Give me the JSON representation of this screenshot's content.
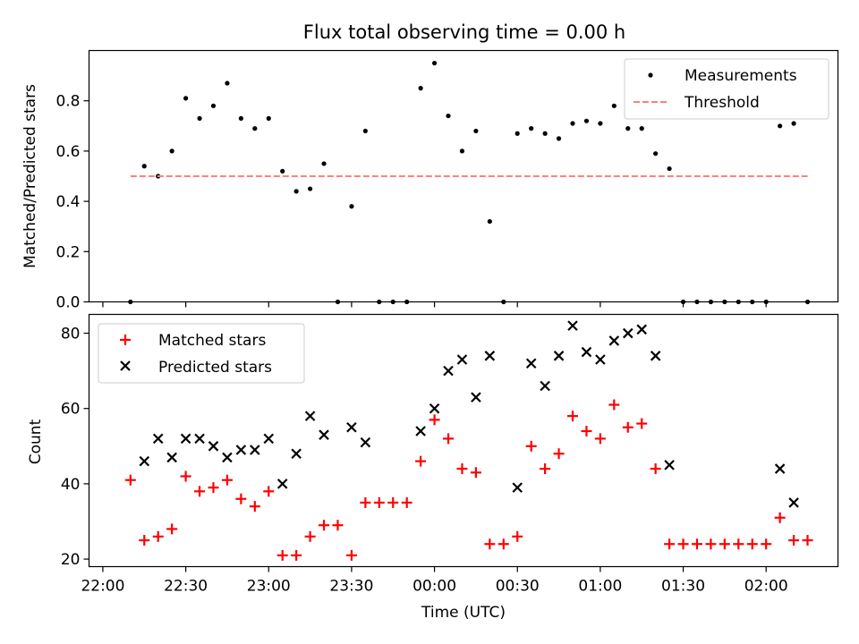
{
  "chart_data": [
    {
      "type": "scatter",
      "title": "Flux total observing time = 0.00 h",
      "xlabel": "",
      "ylabel": "Matched/Predicted stars",
      "ylim": [
        0,
        1.0
      ],
      "yticks": [
        "0.0",
        "0.2",
        "0.4",
        "0.6",
        "0.8"
      ],
      "legend": {
        "placement": "top-right",
        "entries": [
          "Measurements",
          "Threshold"
        ]
      },
      "grid": false,
      "series": [
        {
          "name": "Measurements",
          "marker": "dot",
          "color": "#000000",
          "points": [
            [
              "22:10",
              0.0
            ],
            [
              "22:15",
              0.54
            ],
            [
              "22:20",
              0.5
            ],
            [
              "22:25",
              0.6
            ],
            [
              "22:30",
              0.81
            ],
            [
              "22:35",
              0.73
            ],
            [
              "22:40",
              0.78
            ],
            [
              "22:45",
              0.87
            ],
            [
              "22:50",
              0.73
            ],
            [
              "22:55",
              0.69
            ],
            [
              "23:00",
              0.73
            ],
            [
              "23:05",
              0.52
            ],
            [
              "23:10",
              0.44
            ],
            [
              "23:15",
              0.45
            ],
            [
              "23:20",
              0.55
            ],
            [
              "23:25",
              0.0
            ],
            [
              "23:30",
              0.38
            ],
            [
              "23:35",
              0.68
            ],
            [
              "23:40",
              0.0
            ],
            [
              "23:45",
              0.0
            ],
            [
              "23:50",
              0.0
            ],
            [
              "23:55",
              0.85
            ],
            [
              "00:00",
              0.95
            ],
            [
              "00:05",
              0.74
            ],
            [
              "00:10",
              0.6
            ],
            [
              "00:15",
              0.68
            ],
            [
              "00:20",
              0.32
            ],
            [
              "00:25",
              0.0
            ],
            [
              "00:30",
              0.67
            ],
            [
              "00:35",
              0.69
            ],
            [
              "00:40",
              0.67
            ],
            [
              "00:45",
              0.65
            ],
            [
              "00:50",
              0.71
            ],
            [
              "00:55",
              0.72
            ],
            [
              "01:00",
              0.71
            ],
            [
              "01:05",
              0.78
            ],
            [
              "01:10",
              0.69
            ],
            [
              "01:15",
              0.69
            ],
            [
              "01:20",
              0.59
            ],
            [
              "01:25",
              0.53
            ],
            [
              "01:30",
              0.0
            ],
            [
              "01:35",
              0.0
            ],
            [
              "01:40",
              0.0
            ],
            [
              "01:45",
              0.0
            ],
            [
              "01:50",
              0.0
            ],
            [
              "01:55",
              0.0
            ],
            [
              "02:00",
              0.0
            ],
            [
              "02:05",
              0.7
            ],
            [
              "02:10",
              0.71
            ],
            [
              "02:15",
              0.0
            ]
          ]
        },
        {
          "name": "Threshold",
          "type": "line",
          "style": "dashed",
          "color": "#ff7f7f",
          "points": [
            [
              "22:10",
              0.5
            ],
            [
              "02:15",
              0.5
            ]
          ]
        }
      ]
    },
    {
      "type": "scatter",
      "title": "",
      "xlabel": "Time (UTC)",
      "ylabel": "Count",
      "ylim": [
        18,
        85
      ],
      "yticks": [
        "20",
        "40",
        "60",
        "80"
      ],
      "xticks": [
        "22:00",
        "22:30",
        "23:00",
        "23:30",
        "00:00",
        "00:30",
        "01:00",
        "01:30",
        "02:00"
      ],
      "legend": {
        "placement": "top-left",
        "entries": [
          "Matched stars",
          "Predicted stars"
        ]
      },
      "grid": false,
      "series": [
        {
          "name": "Matched stars",
          "marker": "plus",
          "color": "#ff0000",
          "points": [
            [
              "22:10",
              41
            ],
            [
              "22:15",
              25
            ],
            [
              "22:20",
              26
            ],
            [
              "22:25",
              28
            ],
            [
              "22:30",
              42
            ],
            [
              "22:35",
              38
            ],
            [
              "22:40",
              39
            ],
            [
              "22:45",
              41
            ],
            [
              "22:50",
              36
            ],
            [
              "22:55",
              34
            ],
            [
              "23:00",
              38
            ],
            [
              "23:05",
              21
            ],
            [
              "23:10",
              21
            ],
            [
              "23:15",
              26
            ],
            [
              "23:20",
              29
            ],
            [
              "23:25",
              29
            ],
            [
              "23:30",
              21
            ],
            [
              "23:35",
              35
            ],
            [
              "23:40",
              35
            ],
            [
              "23:45",
              35
            ],
            [
              "23:50",
              35
            ],
            [
              "23:55",
              46
            ],
            [
              "00:00",
              57
            ],
            [
              "00:05",
              52
            ],
            [
              "00:10",
              44
            ],
            [
              "00:15",
              43
            ],
            [
              "00:20",
              24
            ],
            [
              "00:25",
              24
            ],
            [
              "00:30",
              26
            ],
            [
              "00:35",
              50
            ],
            [
              "00:40",
              44
            ],
            [
              "00:45",
              48
            ],
            [
              "00:50",
              58
            ],
            [
              "00:55",
              54
            ],
            [
              "01:00",
              52
            ],
            [
              "01:05",
              61
            ],
            [
              "01:10",
              55
            ],
            [
              "01:15",
              56
            ],
            [
              "01:20",
              44
            ],
            [
              "01:25",
              24
            ],
            [
              "01:30",
              24
            ],
            [
              "01:35",
              24
            ],
            [
              "01:40",
              24
            ],
            [
              "01:45",
              24
            ],
            [
              "01:50",
              24
            ],
            [
              "01:55",
              24
            ],
            [
              "02:00",
              24
            ],
            [
              "02:05",
              31
            ],
            [
              "02:10",
              25
            ],
            [
              "02:15",
              25
            ]
          ]
        },
        {
          "name": "Predicted stars",
          "marker": "x",
          "color": "#000000",
          "points": [
            [
              "22:15",
              46
            ],
            [
              "22:20",
              52
            ],
            [
              "22:25",
              47
            ],
            [
              "22:30",
              52
            ],
            [
              "22:35",
              52
            ],
            [
              "22:40",
              50
            ],
            [
              "22:45",
              47
            ],
            [
              "22:50",
              49
            ],
            [
              "22:55",
              49
            ],
            [
              "23:00",
              52
            ],
            [
              "23:05",
              40
            ],
            [
              "23:10",
              48
            ],
            [
              "23:15",
              58
            ],
            [
              "23:20",
              53
            ],
            [
              "23:30",
              55
            ],
            [
              "23:35",
              51
            ],
            [
              "23:55",
              54
            ],
            [
              "00:00",
              60
            ],
            [
              "00:05",
              70
            ],
            [
              "00:10",
              73
            ],
            [
              "00:15",
              63
            ],
            [
              "00:20",
              74
            ],
            [
              "00:30",
              39
            ],
            [
              "00:35",
              72
            ],
            [
              "00:40",
              66
            ],
            [
              "00:45",
              74
            ],
            [
              "00:50",
              82
            ],
            [
              "00:55",
              75
            ],
            [
              "01:00",
              73
            ],
            [
              "01:05",
              78
            ],
            [
              "01:10",
              80
            ],
            [
              "01:15",
              81
            ],
            [
              "01:20",
              74
            ],
            [
              "01:25",
              45
            ],
            [
              "02:05",
              44
            ],
            [
              "02:10",
              35
            ]
          ]
        }
      ]
    }
  ]
}
